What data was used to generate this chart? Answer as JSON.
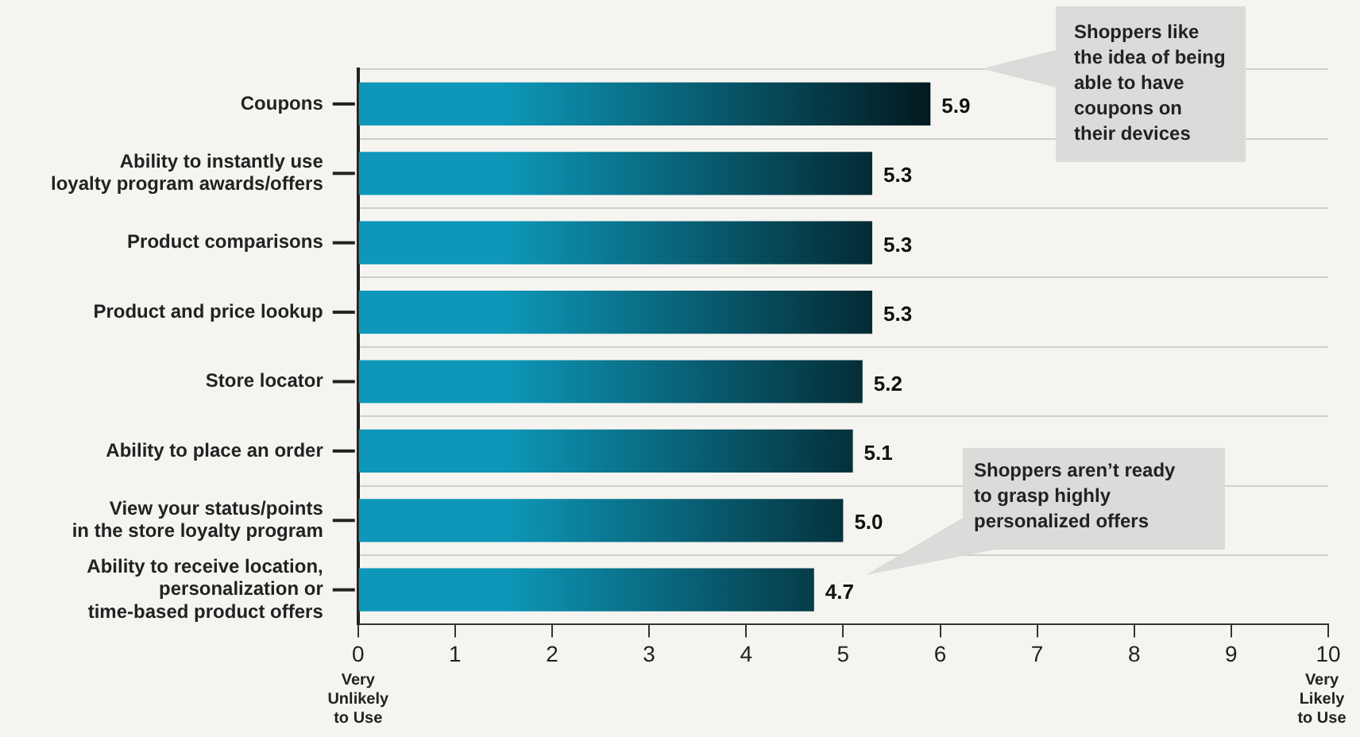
{
  "chart_data": {
    "type": "bar",
    "orientation": "horizontal",
    "categories": [
      "Coupons",
      "Ability to instantly use\nloyalty program awards/offers",
      "Product comparisons",
      "Product and price lookup",
      "Store locator",
      "Ability to place an order",
      "View your status/points\nin the store loyalty program",
      "Ability to receive location,\npersonalization or\ntime-based product offers"
    ],
    "values": [
      5.9,
      5.3,
      5.3,
      5.3,
      5.2,
      5.1,
      5.0,
      4.7
    ],
    "color": "#0e97b8",
    "xlim": [
      0,
      10
    ],
    "xticks": [
      0,
      1,
      2,
      3,
      4,
      5,
      6,
      7,
      8,
      9,
      10
    ],
    "grid": "y",
    "value_labels": [
      "5.9",
      "5.3",
      "5.3",
      "5.3",
      "5.2",
      "5.1",
      "5.0",
      "4.7"
    ],
    "annotations": [
      "Shoppers like\nthe idea of being\nable to have\ncoupons on\ntheir devices",
      "Shoppers aren’t ready\nto grasp highly\npersonalized offers",
      "Very\nUnlikely\nto Use",
      "Very\nLikely\nto Use"
    ]
  }
}
